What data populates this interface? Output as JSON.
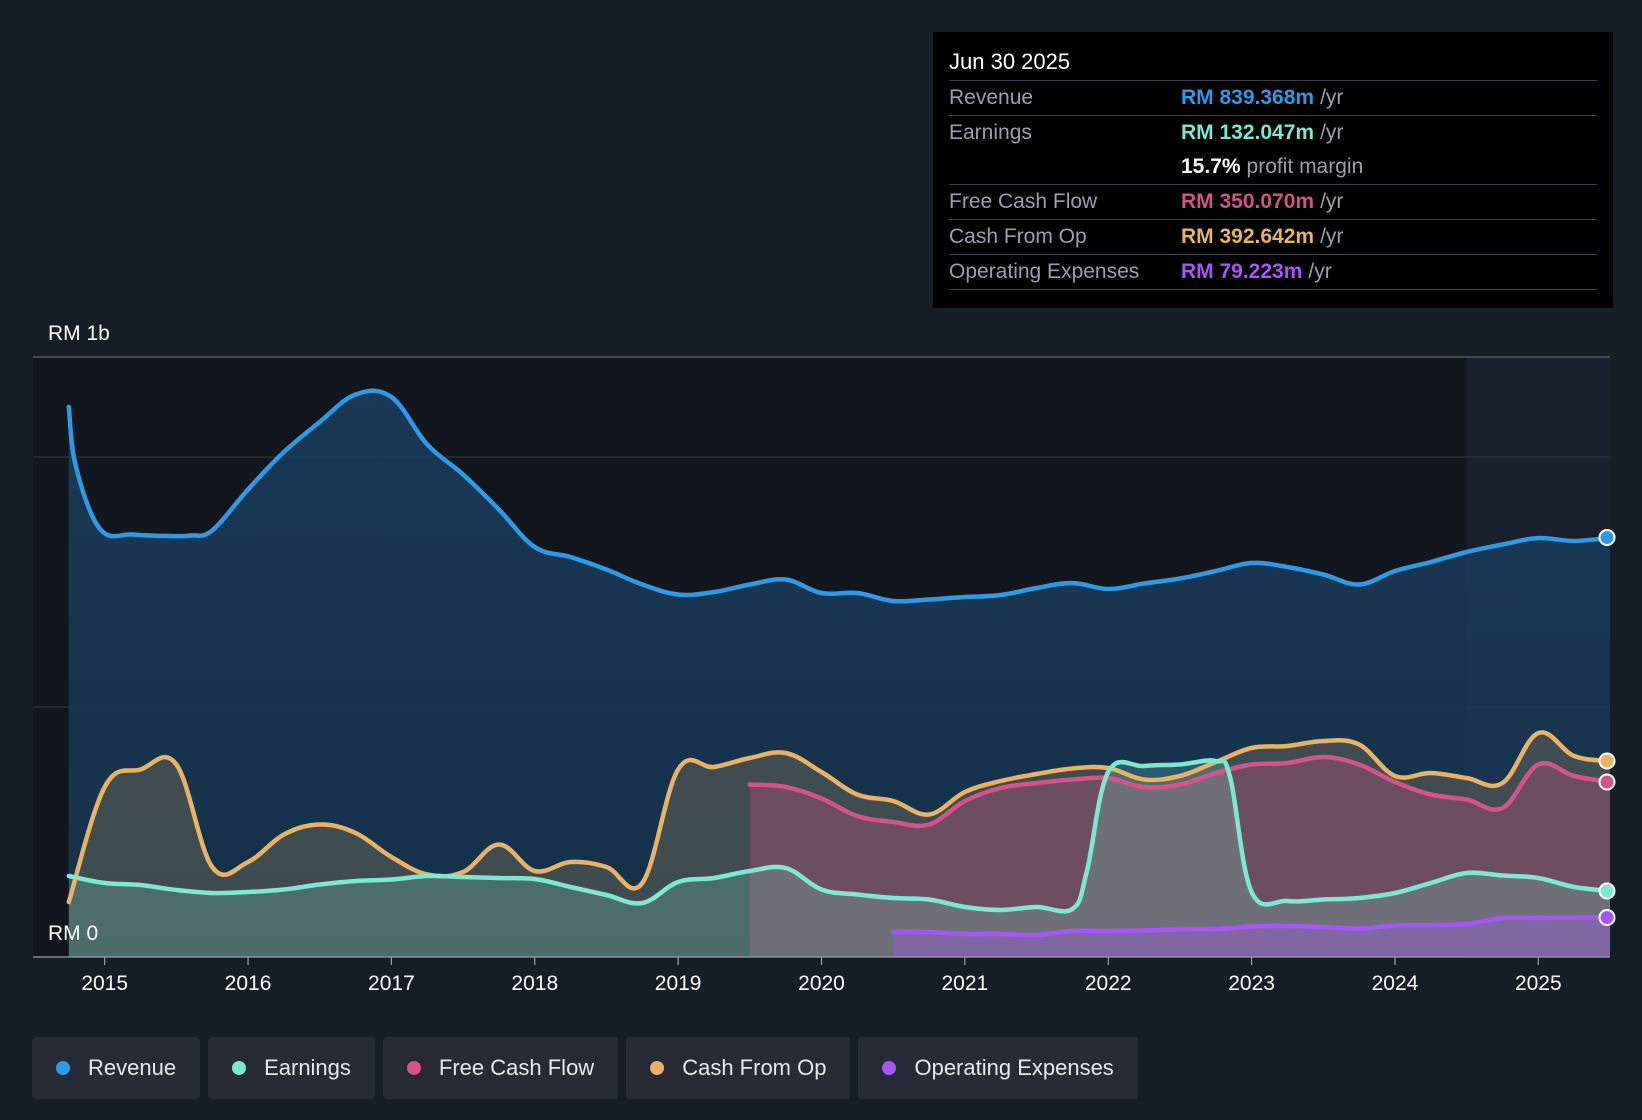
{
  "tooltip": {
    "date": "Jun 30 2025",
    "rows": [
      {
        "label": "Revenue",
        "value": "RM 839.368m",
        "unit": "/yr",
        "color": "#2d9ae6"
      },
      {
        "label": "Earnings",
        "value": "RM 132.047m",
        "unit": "/yr",
        "color": "#7de8d2"
      },
      {
        "label": "",
        "value": "15.7%",
        "unit": "profit margin",
        "color": "#ffffff"
      },
      {
        "label": "Free Cash Flow",
        "value": "RM 350.070m",
        "unit": "/yr",
        "color": "#d4538a"
      },
      {
        "label": "Cash From Op",
        "value": "RM 392.642m",
        "unit": "/yr",
        "color": "#e8b366"
      },
      {
        "label": "Operating Expenses",
        "value": "RM 79.223m",
        "unit": "/yr",
        "color": "#a855f7"
      }
    ]
  },
  "legend": [
    {
      "label": "Revenue",
      "color": "#2d9ae6"
    },
    {
      "label": "Earnings",
      "color": "#7de8d2"
    },
    {
      "label": "Free Cash Flow",
      "color": "#d4538a"
    },
    {
      "label": "Cash From Op",
      "color": "#e8b366"
    },
    {
      "label": "Operating Expenses",
      "color": "#a855f7"
    }
  ],
  "chart_data": {
    "type": "area",
    "title": "",
    "xlabel": "",
    "ylabel": "",
    "y_top_label": "RM 1b",
    "y_bottom_label": "RM 0",
    "xlim": [
      2014.5,
      2025.5
    ],
    "ylim": [
      0,
      1200
    ],
    "x_ticks": [
      2015,
      2016,
      2017,
      2018,
      2019,
      2020,
      2021,
      2022,
      2023,
      2024,
      2025
    ],
    "x_tick_labels": [
      "2015",
      "2016",
      "2017",
      "2018",
      "2019",
      "2020",
      "2021",
      "2022",
      "2023",
      "2024",
      "2025"
    ],
    "gridlines": [
      500,
      1000
    ],
    "forecast_start": 2024.5,
    "series": [
      {
        "name": "Revenue",
        "color": "#2d9ae6",
        "points": [
          [
            2014.75,
            1100
          ],
          [
            2014.8,
            980
          ],
          [
            2014.97,
            855
          ],
          [
            2015.2,
            845
          ],
          [
            2015.45,
            842
          ],
          [
            2015.6,
            843
          ],
          [
            2015.75,
            853
          ],
          [
            2016.0,
            935
          ],
          [
            2016.25,
            1010
          ],
          [
            2016.5,
            1070
          ],
          [
            2016.75,
            1125
          ],
          [
            2017.0,
            1120
          ],
          [
            2017.25,
            1025
          ],
          [
            2017.5,
            965
          ],
          [
            2017.75,
            895
          ],
          [
            2018.0,
            820
          ],
          [
            2018.25,
            800
          ],
          [
            2018.5,
            775
          ],
          [
            2018.75,
            745
          ],
          [
            2019.0,
            725
          ],
          [
            2019.25,
            730
          ],
          [
            2019.5,
            745
          ],
          [
            2019.75,
            755
          ],
          [
            2020.0,
            728
          ],
          [
            2020.25,
            728
          ],
          [
            2020.5,
            712
          ],
          [
            2020.75,
            715
          ],
          [
            2021.0,
            720
          ],
          [
            2021.25,
            724
          ],
          [
            2021.5,
            738
          ],
          [
            2021.75,
            748
          ],
          [
            2022.0,
            736
          ],
          [
            2022.25,
            747
          ],
          [
            2022.5,
            757
          ],
          [
            2022.75,
            772
          ],
          [
            2023.0,
            788
          ],
          [
            2023.25,
            780
          ],
          [
            2023.5,
            765
          ],
          [
            2023.75,
            745
          ],
          [
            2024.0,
            772
          ],
          [
            2024.25,
            790
          ],
          [
            2024.5,
            810
          ],
          [
            2024.75,
            825
          ],
          [
            2025.0,
            838
          ],
          [
            2025.25,
            832
          ],
          [
            2025.5,
            839
          ]
        ]
      },
      {
        "name": "Earnings",
        "color": "#7de8d2",
        "points": [
          [
            2014.75,
            162
          ],
          [
            2015.0,
            148
          ],
          [
            2015.25,
            144
          ],
          [
            2015.5,
            134
          ],
          [
            2015.75,
            128
          ],
          [
            2016.0,
            130
          ],
          [
            2016.25,
            135
          ],
          [
            2016.5,
            145
          ],
          [
            2016.75,
            152
          ],
          [
            2017.0,
            155
          ],
          [
            2017.25,
            162
          ],
          [
            2017.5,
            160
          ],
          [
            2017.75,
            158
          ],
          [
            2018.0,
            156
          ],
          [
            2018.25,
            140
          ],
          [
            2018.5,
            124
          ],
          [
            2018.75,
            108
          ],
          [
            2019.0,
            150
          ],
          [
            2019.25,
            158
          ],
          [
            2019.5,
            172
          ],
          [
            2019.75,
            178
          ],
          [
            2020.0,
            135
          ],
          [
            2020.25,
            125
          ],
          [
            2020.5,
            118
          ],
          [
            2020.75,
            115
          ],
          [
            2021.0,
            100
          ],
          [
            2021.25,
            94
          ],
          [
            2021.5,
            100
          ],
          [
            2021.75,
            96
          ],
          [
            2021.85,
            170
          ],
          [
            2022.0,
            370
          ],
          [
            2022.25,
            382
          ],
          [
            2022.5,
            385
          ],
          [
            2022.75,
            392
          ],
          [
            2022.85,
            360
          ],
          [
            2023.0,
            130
          ],
          [
            2023.25,
            112
          ],
          [
            2023.5,
            115
          ],
          [
            2023.75,
            118
          ],
          [
            2024.0,
            128
          ],
          [
            2024.25,
            148
          ],
          [
            2024.5,
            168
          ],
          [
            2024.75,
            163
          ],
          [
            2025.0,
            158
          ],
          [
            2025.25,
            140
          ],
          [
            2025.5,
            132
          ]
        ]
      },
      {
        "name": "Free Cash Flow",
        "color": "#d4538a",
        "points": [
          [
            2019.5,
            345
          ],
          [
            2019.75,
            340
          ],
          [
            2020.0,
            317
          ],
          [
            2020.25,
            282
          ],
          [
            2020.5,
            270
          ],
          [
            2020.75,
            265
          ],
          [
            2021.0,
            312
          ],
          [
            2021.25,
            338
          ],
          [
            2021.5,
            348
          ],
          [
            2021.75,
            355
          ],
          [
            2022.0,
            358
          ],
          [
            2022.25,
            340
          ],
          [
            2022.5,
            345
          ],
          [
            2022.75,
            368
          ],
          [
            2023.0,
            385
          ],
          [
            2023.25,
            388
          ],
          [
            2023.5,
            400
          ],
          [
            2023.75,
            385
          ],
          [
            2024.0,
            350
          ],
          [
            2024.25,
            325
          ],
          [
            2024.5,
            315
          ],
          [
            2024.75,
            298
          ],
          [
            2025.0,
            385
          ],
          [
            2025.25,
            362
          ],
          [
            2025.5,
            350
          ]
        ]
      },
      {
        "name": "Cash From Op",
        "color": "#e8b366",
        "points": [
          [
            2014.75,
            110
          ],
          [
            2015.0,
            340
          ],
          [
            2015.25,
            375
          ],
          [
            2015.5,
            385
          ],
          [
            2015.75,
            180
          ],
          [
            2016.0,
            190
          ],
          [
            2016.25,
            245
          ],
          [
            2016.5,
            265
          ],
          [
            2016.75,
            248
          ],
          [
            2017.0,
            200
          ],
          [
            2017.25,
            165
          ],
          [
            2017.5,
            170
          ],
          [
            2017.75,
            225
          ],
          [
            2018.0,
            172
          ],
          [
            2018.25,
            190
          ],
          [
            2018.5,
            180
          ],
          [
            2018.75,
            148
          ],
          [
            2019.0,
            375
          ],
          [
            2019.25,
            380
          ],
          [
            2019.5,
            398
          ],
          [
            2019.75,
            408
          ],
          [
            2020.0,
            370
          ],
          [
            2020.25,
            325
          ],
          [
            2020.5,
            312
          ],
          [
            2020.75,
            285
          ],
          [
            2021.0,
            330
          ],
          [
            2021.25,
            352
          ],
          [
            2021.5,
            366
          ],
          [
            2021.75,
            377
          ],
          [
            2022.0,
            378
          ],
          [
            2022.25,
            355
          ],
          [
            2022.5,
            362
          ],
          [
            2022.75,
            390
          ],
          [
            2023.0,
            418
          ],
          [
            2023.25,
            422
          ],
          [
            2023.5,
            432
          ],
          [
            2023.75,
            425
          ],
          [
            2024.0,
            362
          ],
          [
            2024.25,
            368
          ],
          [
            2024.5,
            358
          ],
          [
            2024.75,
            348
          ],
          [
            2025.0,
            448
          ],
          [
            2025.25,
            402
          ],
          [
            2025.5,
            392
          ]
        ]
      },
      {
        "name": "Operating Expenses",
        "color": "#a855f7",
        "points": [
          [
            2020.5,
            50
          ],
          [
            2020.75,
            50
          ],
          [
            2021.0,
            46
          ],
          [
            2021.25,
            46
          ],
          [
            2021.5,
            44
          ],
          [
            2021.75,
            52
          ],
          [
            2022.0,
            52
          ],
          [
            2022.25,
            53
          ],
          [
            2022.5,
            55
          ],
          [
            2022.75,
            56
          ],
          [
            2023.0,
            61
          ],
          [
            2023.25,
            62
          ],
          [
            2023.5,
            60
          ],
          [
            2023.75,
            57
          ],
          [
            2024.0,
            63
          ],
          [
            2024.25,
            64
          ],
          [
            2024.5,
            66
          ],
          [
            2024.75,
            78
          ],
          [
            2025.0,
            78
          ],
          [
            2025.25,
            79
          ],
          [
            2025.5,
            79
          ]
        ]
      }
    ]
  }
}
